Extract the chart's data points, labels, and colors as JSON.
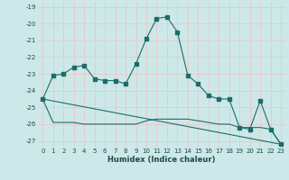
{
  "xlabel": "Humidex (Indice chaleur)",
  "bg_color": "#cde8e8",
  "grid_color": "#b0d8d8",
  "line_color": "#1a6e6a",
  "xlim": [
    -0.5,
    23.5
  ],
  "ylim": [
    -27.4,
    -18.7
  ],
  "yticks": [
    -27,
    -26,
    -25,
    -24,
    -23,
    -22,
    -21,
    -20,
    -19
  ],
  "xticks": [
    0,
    1,
    2,
    3,
    4,
    5,
    6,
    7,
    8,
    9,
    10,
    11,
    12,
    13,
    14,
    15,
    16,
    17,
    18,
    19,
    20,
    21,
    22,
    23
  ],
  "series1_x": [
    0,
    1,
    2,
    3,
    4,
    5,
    6,
    7,
    8,
    9,
    10,
    11,
    12,
    13,
    14,
    15,
    16,
    17,
    18,
    19,
    20,
    21,
    22,
    23
  ],
  "series1_y": [
    -24.5,
    -23.1,
    -23.0,
    -22.6,
    -22.5,
    -23.3,
    -23.4,
    -23.4,
    -23.6,
    -22.4,
    -20.9,
    -19.7,
    -19.6,
    -20.5,
    -23.1,
    -23.6,
    -24.3,
    -24.5,
    -24.5,
    -26.2,
    -26.3,
    -24.6,
    -26.3,
    -27.2
  ],
  "series2_x": [
    0,
    1,
    2,
    3,
    4,
    5,
    6,
    7,
    8,
    9,
    10,
    11,
    12,
    13,
    14,
    15,
    16,
    17,
    18,
    19,
    20,
    21,
    22,
    23
  ],
  "series2_y": [
    -24.5,
    -25.9,
    -25.9,
    -25.9,
    -26.0,
    -26.0,
    -26.0,
    -26.0,
    -26.0,
    -26.0,
    -25.8,
    -25.7,
    -25.7,
    -25.7,
    -25.7,
    -25.8,
    -25.9,
    -26.0,
    -26.0,
    -26.2,
    -26.2,
    -26.2,
    -26.3,
    -27.2
  ],
  "series3_x": [
    0,
    23
  ],
  "series3_y": [
    -24.5,
    -27.2
  ]
}
